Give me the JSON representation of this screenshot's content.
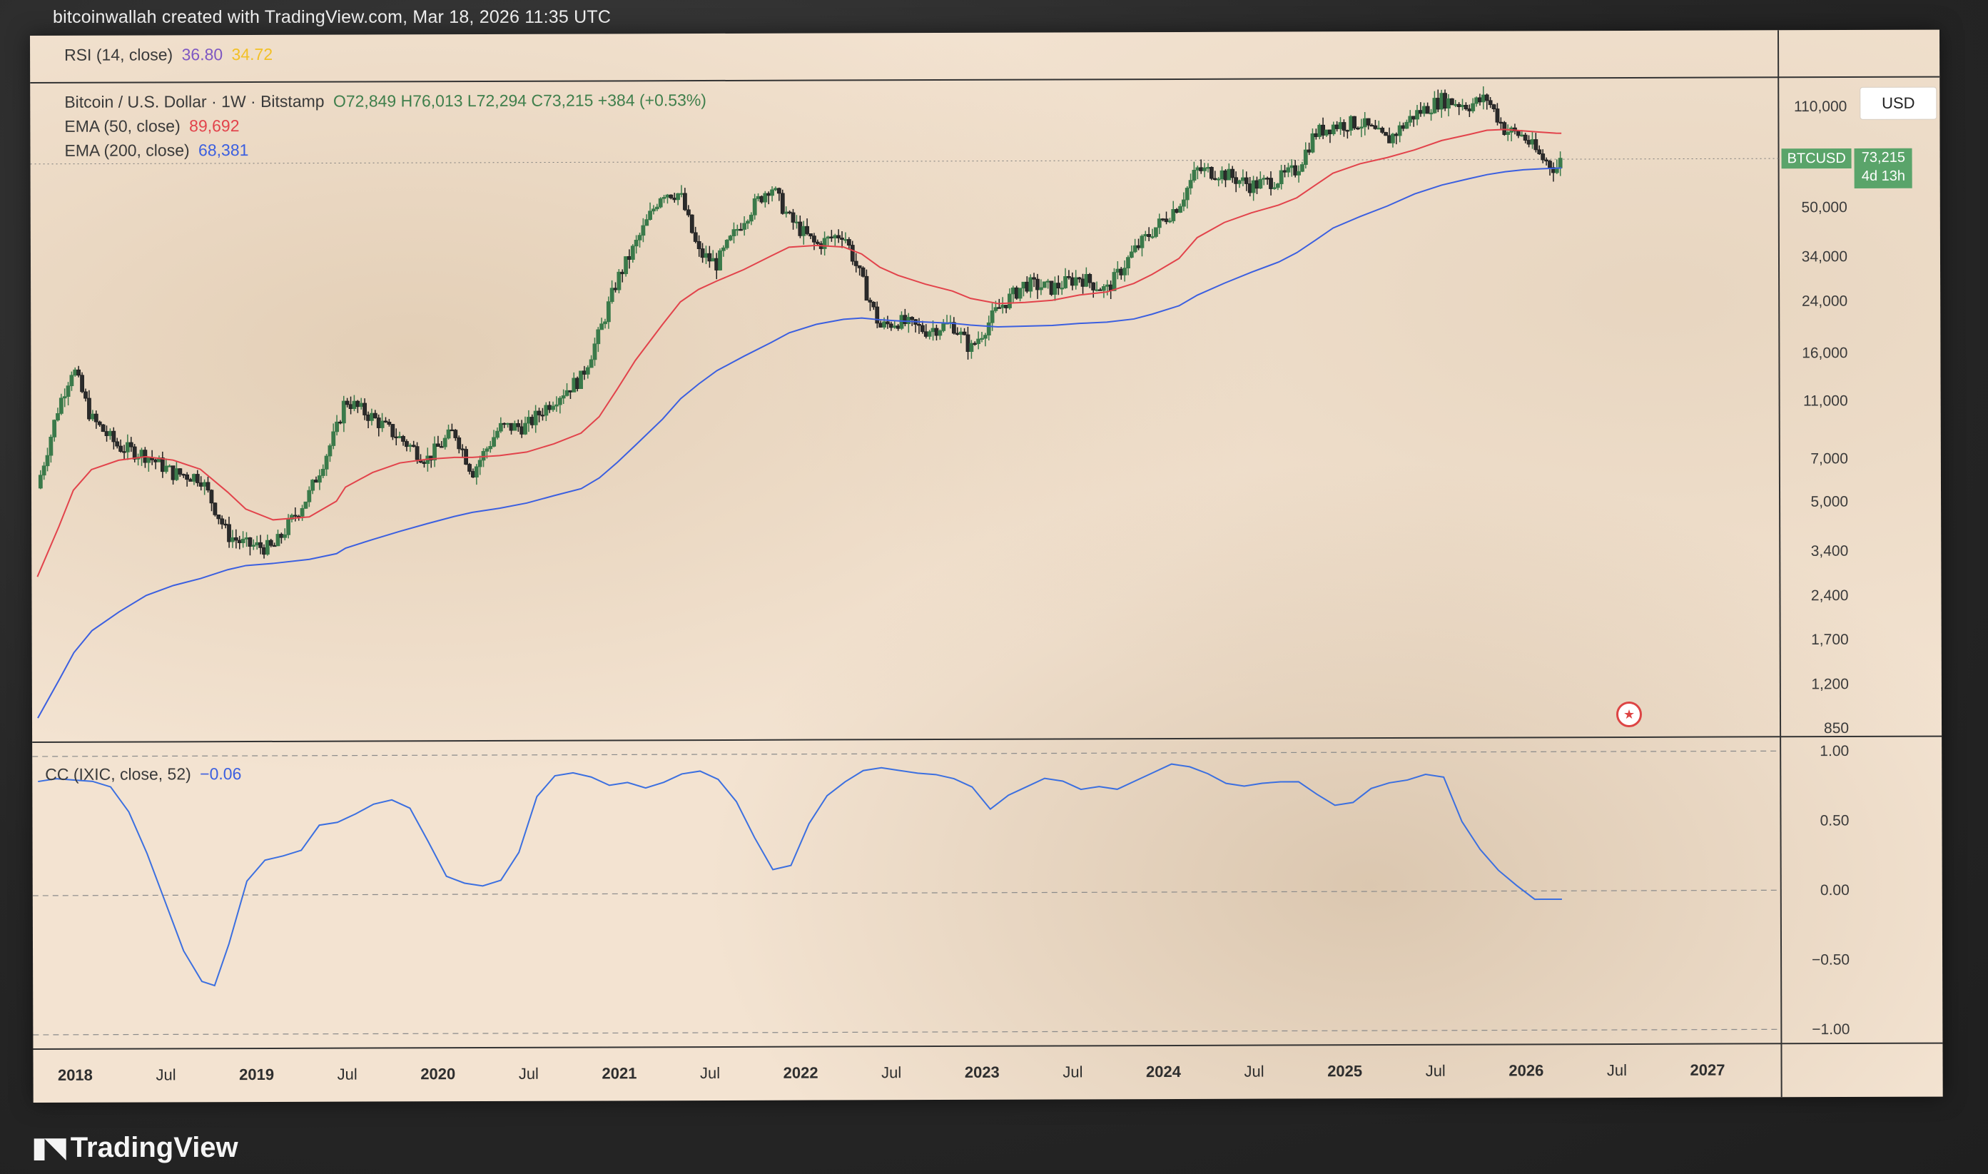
{
  "attribution": "bitcoinwallah created with TradingView.com, Mar 18, 2026 11:35 UTC",
  "logo_text": "TradingView",
  "currency_button": "USD",
  "rsi_legend": {
    "label": "RSI (14, close)",
    "value1": "36.80",
    "value2": "34.72"
  },
  "price_legend": {
    "symbol": "Bitcoin / U.S. Dollar · 1W · Bitstamp",
    "ohlc": "O72,849  H76,013  L72,294  C73,215  +384 (+0.53%)"
  },
  "ema50_legend": {
    "label": "EMA (50, close)",
    "value": "89,692"
  },
  "ema200_legend": {
    "label": "EMA (200, close)",
    "value": "68,381"
  },
  "cc_legend": {
    "label": "CC (IXIC, close, 52)",
    "value": "−0.06"
  },
  "price_tag": {
    "symbol": "BTCUSD",
    "price": "73,215",
    "countdown": "4d 13h"
  },
  "colors": {
    "up_candle": "#3b7a4a",
    "down_candle": "#1f1f1f",
    "ema50": "#e2434b",
    "ema200": "#3b5fe0",
    "cc_line": "#3b6fe0",
    "price_tag": "#5aa46a"
  },
  "chart_data": [
    {
      "type": "line",
      "title": "Bitcoin / U.S. Dollar · 1W · Bitstamp",
      "y_scale": "log",
      "price_ticks": [
        "110,000",
        "50,000",
        "34,000",
        "24,000",
        "16,000",
        "11,000",
        "7,000",
        "5,000",
        "3,400",
        "2,400",
        "1,700",
        "1,200",
        "850"
      ],
      "price_tick_values": [
        110000,
        50000,
        34000,
        24000,
        16000,
        11000,
        7000,
        5000,
        3400,
        2400,
        1700,
        1200,
        850
      ],
      "time_ticks": [
        "2018",
        "Jul",
        "2019",
        "Jul",
        "2020",
        "Jul",
        "2021",
        "Jul",
        "2022",
        "Jul",
        "2023",
        "Jul",
        "2024",
        "Jul",
        "2025",
        "Jul",
        "2026",
        "Jul",
        "2027"
      ],
      "x": [
        2017.8,
        2017.92,
        2018.0,
        2018.1,
        2018.25,
        2018.4,
        2018.55,
        2018.7,
        2018.85,
        2018.95,
        2019.1,
        2019.3,
        2019.45,
        2019.5,
        2019.65,
        2019.8,
        2019.95,
        2020.1,
        2020.2,
        2020.35,
        2020.5,
        2020.65,
        2020.8,
        2020.9,
        2021.0,
        2021.1,
        2021.25,
        2021.35,
        2021.45,
        2021.55,
        2021.7,
        2021.85,
        2021.95,
        2022.1,
        2022.25,
        2022.35,
        2022.45,
        2022.55,
        2022.7,
        2022.85,
        2022.95,
        2023.1,
        2023.25,
        2023.4,
        2023.55,
        2023.7,
        2023.85,
        2023.95,
        2024.1,
        2024.2,
        2024.35,
        2024.5,
        2024.65,
        2024.75,
        2024.85,
        2024.95,
        2025.1,
        2025.25,
        2025.4,
        2025.55,
        2025.7,
        2025.8,
        2025.9,
        2026.0,
        2026.1,
        2026.18,
        2026.21
      ],
      "series": [
        {
          "name": "Bitcoin / U.S. Dollar",
          "values": [
            5800,
            11000,
            15000,
            10000,
            8000,
            7500,
            6500,
            6300,
            4000,
            3700,
            3600,
            5500,
            9000,
            11500,
            10000,
            8500,
            7200,
            9000,
            6500,
            9200,
            9300,
            11500,
            13500,
            19000,
            29000,
            38000,
            58000,
            57000,
            36000,
            33000,
            47000,
            61000,
            47000,
            38000,
            42000,
            29000,
            20000,
            21000,
            19500,
            20500,
            16800,
            23000,
            28000,
            27000,
            29500,
            26500,
            36000,
            42000,
            52000,
            68000,
            66000,
            60000,
            63000,
            68000,
            90000,
            96000,
            98000,
            85000,
            104000,
            117000,
            112000,
            118000,
            92000,
            88000,
            74000,
            68000,
            73215
          ]
        },
        {
          "name": "EMA (50, close)",
          "values": [
            2900,
            4300,
            5700,
            6700,
            7200,
            7400,
            7200,
            6700,
            5600,
            4900,
            4500,
            4600,
            5200,
            5800,
            6500,
            7000,
            7200,
            7300,
            7300,
            7400,
            7600,
            8100,
            8800,
            10000,
            12400,
            15500,
            20500,
            24500,
            27000,
            28800,
            31500,
            35000,
            37500,
            38000,
            37500,
            35500,
            32000,
            30000,
            28000,
            26500,
            25000,
            24000,
            24200,
            24600,
            25600,
            26200,
            28000,
            30000,
            34000,
            40000,
            45000,
            48500,
            51500,
            54500,
            60000,
            66000,
            71000,
            74500,
            79000,
            85000,
            89000,
            92000,
            92500,
            91500,
            90500,
            89700,
            89692
          ]
        },
        {
          "name": "EMA (200, close)",
          "values": [
            960,
            1300,
            1600,
            1900,
            2200,
            2500,
            2700,
            2850,
            3050,
            3150,
            3200,
            3300,
            3450,
            3600,
            3850,
            4100,
            4350,
            4600,
            4750,
            4900,
            5100,
            5400,
            5700,
            6200,
            7000,
            8000,
            9800,
            11500,
            12900,
            14300,
            16000,
            17800,
            19200,
            20500,
            21300,
            21500,
            21200,
            21000,
            20800,
            20600,
            20300,
            20000,
            20100,
            20200,
            20500,
            20700,
            21200,
            22000,
            23500,
            25500,
            28000,
            30500,
            33000,
            35500,
            39000,
            43000,
            47000,
            51000,
            56000,
            60000,
            63000,
            65000,
            66500,
            67500,
            68000,
            68300,
            68381
          ]
        }
      ]
    },
    {
      "type": "line",
      "title": "CC (IXIC, close, 52)",
      "ylim": [
        -1.0,
        1.0
      ],
      "y_ticks": [
        "1.00",
        "0.50",
        "0.00",
        "−0.50",
        "−1.00"
      ],
      "y_tick_values": [
        1.0,
        0.5,
        0.0,
        -0.5,
        -1.0
      ],
      "x": [
        2017.8,
        2017.9,
        2018.0,
        2018.1,
        2018.2,
        2018.3,
        2018.4,
        2018.5,
        2018.6,
        2018.7,
        2018.77,
        2018.85,
        2018.95,
        2019.05,
        2019.15,
        2019.25,
        2019.35,
        2019.45,
        2019.55,
        2019.65,
        2019.75,
        2019.85,
        2019.95,
        2020.05,
        2020.15,
        2020.25,
        2020.35,
        2020.45,
        2020.55,
        2020.65,
        2020.75,
        2020.85,
        2020.95,
        2021.05,
        2021.15,
        2021.25,
        2021.35,
        2021.45,
        2021.55,
        2021.65,
        2021.75,
        2021.85,
        2021.95,
        2022.05,
        2022.15,
        2022.25,
        2022.35,
        2022.45,
        2022.55,
        2022.65,
        2022.75,
        2022.85,
        2022.95,
        2023.05,
        2023.15,
        2023.25,
        2023.35,
        2023.45,
        2023.55,
        2023.65,
        2023.75,
        2023.85,
        2023.95,
        2024.05,
        2024.15,
        2024.25,
        2024.35,
        2024.45,
        2024.55,
        2024.65,
        2024.75,
        2024.85,
        2024.95,
        2025.05,
        2025.15,
        2025.25,
        2025.35,
        2025.45,
        2025.55,
        2025.65,
        2025.75,
        2025.85,
        2025.95,
        2026.05,
        2026.15,
        2026.2
      ],
      "series": [
        {
          "name": "CC (IXIC, close, 52)",
          "values": [
            0.82,
            0.84,
            0.83,
            0.82,
            0.78,
            0.6,
            0.3,
            -0.05,
            -0.4,
            -0.62,
            -0.65,
            -0.35,
            0.1,
            0.25,
            0.28,
            0.32,
            0.5,
            0.52,
            0.58,
            0.65,
            0.68,
            0.62,
            0.38,
            0.13,
            0.08,
            0.06,
            0.1,
            0.3,
            0.7,
            0.85,
            0.87,
            0.84,
            0.78,
            0.8,
            0.76,
            0.8,
            0.86,
            0.88,
            0.82,
            0.66,
            0.4,
            0.17,
            0.2,
            0.5,
            0.7,
            0.8,
            0.88,
            0.9,
            0.88,
            0.86,
            0.85,
            0.82,
            0.76,
            0.6,
            0.7,
            0.76,
            0.82,
            0.8,
            0.74,
            0.76,
            0.74,
            0.8,
            0.86,
            0.92,
            0.9,
            0.85,
            0.78,
            0.76,
            0.78,
            0.79,
            0.79,
            0.7,
            0.62,
            0.64,
            0.74,
            0.78,
            0.8,
            0.84,
            0.82,
            0.5,
            0.3,
            0.15,
            0.04,
            -0.06,
            -0.06,
            -0.06
          ]
        }
      ]
    }
  ]
}
